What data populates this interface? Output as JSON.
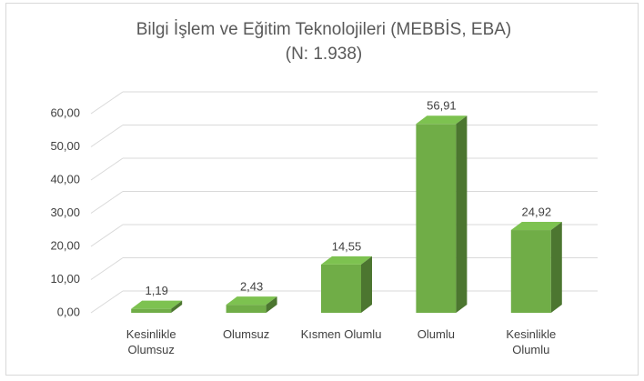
{
  "chart_data": {
    "type": "bar3d",
    "title": "Bilgi İşlem ve Eğitim Teknolojileri (MEBBİS, EBA)",
    "subtitle": "(N: 1.938)",
    "categories": [
      "Kesinlikle Olumsuz",
      "Olumsuz",
      "Kısmen Olumlu",
      "Olumlu",
      "Kesinlikle Olumlu"
    ],
    "values": [
      1.19,
      2.43,
      14.55,
      56.91,
      24.92
    ],
    "value_labels": [
      "1,19",
      "2,43",
      "14,55",
      "56,91",
      "24,92"
    ],
    "color": "#70ad47",
    "ylim": [
      0,
      60
    ],
    "yticks": [
      {
        "value": 0,
        "label": "0,00"
      },
      {
        "value": 10,
        "label": "10,00"
      },
      {
        "value": 20,
        "label": "20,00"
      },
      {
        "value": 30,
        "label": "30,00"
      },
      {
        "value": 40,
        "label": "40,00"
      },
      {
        "value": 50,
        "label": "50,00"
      },
      {
        "value": 60,
        "label": "60,00"
      }
    ],
    "grid": true
  }
}
